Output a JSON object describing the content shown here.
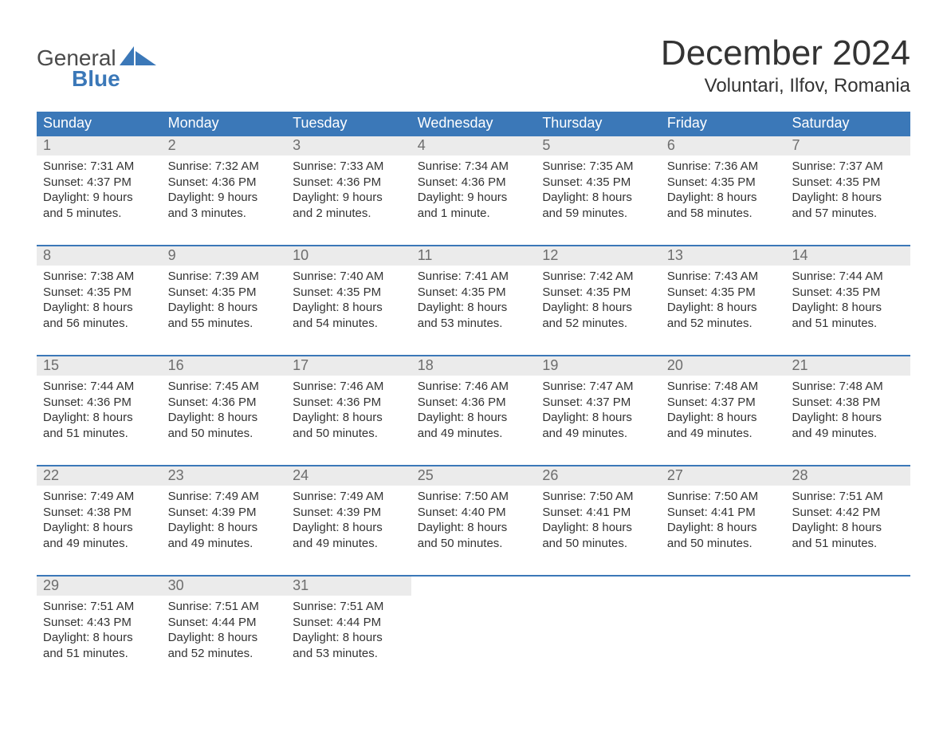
{
  "logo": {
    "text1": "General",
    "text2": "Blue",
    "sail_color": "#3b78b8"
  },
  "header": {
    "month_title": "December 2024",
    "location": "Voluntari, Ilfov, Romania"
  },
  "colors": {
    "header_bg": "#3b78b8",
    "date_bg": "#ebebeb",
    "date_fg": "#6d6d6d",
    "week_border": "#3b78b8",
    "text": "#333333",
    "background": "#ffffff"
  },
  "day_names": [
    "Sunday",
    "Monday",
    "Tuesday",
    "Wednesday",
    "Thursday",
    "Friday",
    "Saturday"
  ],
  "labels": {
    "sunrise": "Sunrise:",
    "sunset": "Sunset:",
    "daylight": "Daylight:"
  },
  "weeks": [
    [
      {
        "date": "1",
        "sunrise": "7:31 AM",
        "sunset": "4:37 PM",
        "daylight_l1": "9 hours",
        "daylight_l2": "and 5 minutes."
      },
      {
        "date": "2",
        "sunrise": "7:32 AM",
        "sunset": "4:36 PM",
        "daylight_l1": "9 hours",
        "daylight_l2": "and 3 minutes."
      },
      {
        "date": "3",
        "sunrise": "7:33 AM",
        "sunset": "4:36 PM",
        "daylight_l1": "9 hours",
        "daylight_l2": "and 2 minutes."
      },
      {
        "date": "4",
        "sunrise": "7:34 AM",
        "sunset": "4:36 PM",
        "daylight_l1": "9 hours",
        "daylight_l2": "and 1 minute."
      },
      {
        "date": "5",
        "sunrise": "7:35 AM",
        "sunset": "4:35 PM",
        "daylight_l1": "8 hours",
        "daylight_l2": "and 59 minutes."
      },
      {
        "date": "6",
        "sunrise": "7:36 AM",
        "sunset": "4:35 PM",
        "daylight_l1": "8 hours",
        "daylight_l2": "and 58 minutes."
      },
      {
        "date": "7",
        "sunrise": "7:37 AM",
        "sunset": "4:35 PM",
        "daylight_l1": "8 hours",
        "daylight_l2": "and 57 minutes."
      }
    ],
    [
      {
        "date": "8",
        "sunrise": "7:38 AM",
        "sunset": "4:35 PM",
        "daylight_l1": "8 hours",
        "daylight_l2": "and 56 minutes."
      },
      {
        "date": "9",
        "sunrise": "7:39 AM",
        "sunset": "4:35 PM",
        "daylight_l1": "8 hours",
        "daylight_l2": "and 55 minutes."
      },
      {
        "date": "10",
        "sunrise": "7:40 AM",
        "sunset": "4:35 PM",
        "daylight_l1": "8 hours",
        "daylight_l2": "and 54 minutes."
      },
      {
        "date": "11",
        "sunrise": "7:41 AM",
        "sunset": "4:35 PM",
        "daylight_l1": "8 hours",
        "daylight_l2": "and 53 minutes."
      },
      {
        "date": "12",
        "sunrise": "7:42 AM",
        "sunset": "4:35 PM",
        "daylight_l1": "8 hours",
        "daylight_l2": "and 52 minutes."
      },
      {
        "date": "13",
        "sunrise": "7:43 AM",
        "sunset": "4:35 PM",
        "daylight_l1": "8 hours",
        "daylight_l2": "and 52 minutes."
      },
      {
        "date": "14",
        "sunrise": "7:44 AM",
        "sunset": "4:35 PM",
        "daylight_l1": "8 hours",
        "daylight_l2": "and 51 minutes."
      }
    ],
    [
      {
        "date": "15",
        "sunrise": "7:44 AM",
        "sunset": "4:36 PM",
        "daylight_l1": "8 hours",
        "daylight_l2": "and 51 minutes."
      },
      {
        "date": "16",
        "sunrise": "7:45 AM",
        "sunset": "4:36 PM",
        "daylight_l1": "8 hours",
        "daylight_l2": "and 50 minutes."
      },
      {
        "date": "17",
        "sunrise": "7:46 AM",
        "sunset": "4:36 PM",
        "daylight_l1": "8 hours",
        "daylight_l2": "and 50 minutes."
      },
      {
        "date": "18",
        "sunrise": "7:46 AM",
        "sunset": "4:36 PM",
        "daylight_l1": "8 hours",
        "daylight_l2": "and 49 minutes."
      },
      {
        "date": "19",
        "sunrise": "7:47 AM",
        "sunset": "4:37 PM",
        "daylight_l1": "8 hours",
        "daylight_l2": "and 49 minutes."
      },
      {
        "date": "20",
        "sunrise": "7:48 AM",
        "sunset": "4:37 PM",
        "daylight_l1": "8 hours",
        "daylight_l2": "and 49 minutes."
      },
      {
        "date": "21",
        "sunrise": "7:48 AM",
        "sunset": "4:38 PM",
        "daylight_l1": "8 hours",
        "daylight_l2": "and 49 minutes."
      }
    ],
    [
      {
        "date": "22",
        "sunrise": "7:49 AM",
        "sunset": "4:38 PM",
        "daylight_l1": "8 hours",
        "daylight_l2": "and 49 minutes."
      },
      {
        "date": "23",
        "sunrise": "7:49 AM",
        "sunset": "4:39 PM",
        "daylight_l1": "8 hours",
        "daylight_l2": "and 49 minutes."
      },
      {
        "date": "24",
        "sunrise": "7:49 AM",
        "sunset": "4:39 PM",
        "daylight_l1": "8 hours",
        "daylight_l2": "and 49 minutes."
      },
      {
        "date": "25",
        "sunrise": "7:50 AM",
        "sunset": "4:40 PM",
        "daylight_l1": "8 hours",
        "daylight_l2": "and 50 minutes."
      },
      {
        "date": "26",
        "sunrise": "7:50 AM",
        "sunset": "4:41 PM",
        "daylight_l1": "8 hours",
        "daylight_l2": "and 50 minutes."
      },
      {
        "date": "27",
        "sunrise": "7:50 AM",
        "sunset": "4:41 PM",
        "daylight_l1": "8 hours",
        "daylight_l2": "and 50 minutes."
      },
      {
        "date": "28",
        "sunrise": "7:51 AM",
        "sunset": "4:42 PM",
        "daylight_l1": "8 hours",
        "daylight_l2": "and 51 minutes."
      }
    ],
    [
      {
        "date": "29",
        "sunrise": "7:51 AM",
        "sunset": "4:43 PM",
        "daylight_l1": "8 hours",
        "daylight_l2": "and 51 minutes."
      },
      {
        "date": "30",
        "sunrise": "7:51 AM",
        "sunset": "4:44 PM",
        "daylight_l1": "8 hours",
        "daylight_l2": "and 52 minutes."
      },
      {
        "date": "31",
        "sunrise": "7:51 AM",
        "sunset": "4:44 PM",
        "daylight_l1": "8 hours",
        "daylight_l2": "and 53 minutes."
      },
      {
        "empty": true
      },
      {
        "empty": true
      },
      {
        "empty": true
      },
      {
        "empty": true
      }
    ]
  ]
}
